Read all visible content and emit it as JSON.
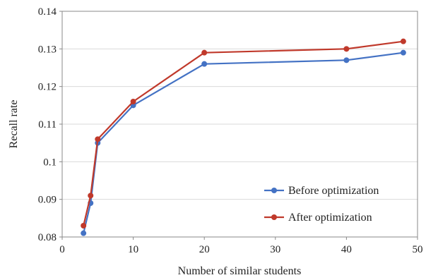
{
  "chart_data": {
    "type": "line",
    "title": "",
    "xlabel": "Number of similar students",
    "ylabel": "Recall rate",
    "xlim": [
      0,
      50
    ],
    "ylim": [
      0.08,
      0.14
    ],
    "xticks": [
      0,
      10,
      20,
      30,
      40,
      50
    ],
    "yticks": [
      0.08,
      0.09,
      0.1,
      0.11,
      0.12,
      0.13,
      0.14
    ],
    "xtick_labels": [
      "0",
      "10",
      "20",
      "30",
      "40",
      "50"
    ],
    "ytick_labels": [
      "0.08",
      "0.09",
      "0.1",
      "0.11",
      "0.12",
      "0.13",
      "0.14"
    ],
    "grid": "horizontal",
    "legend_position": "lower-right",
    "series": [
      {
        "name": "Before optimization",
        "color": "#4472C4",
        "x": [
          3,
          4,
          5,
          10,
          20,
          40,
          48
        ],
        "y": [
          0.081,
          0.089,
          0.105,
          0.115,
          0.126,
          0.127,
          0.129
        ]
      },
      {
        "name": "After optimization",
        "color": "#C0392B",
        "x": [
          3,
          4,
          5,
          10,
          20,
          40,
          48
        ],
        "y": [
          0.083,
          0.091,
          0.106,
          0.116,
          0.129,
          0.13,
          0.132
        ]
      }
    ]
  }
}
